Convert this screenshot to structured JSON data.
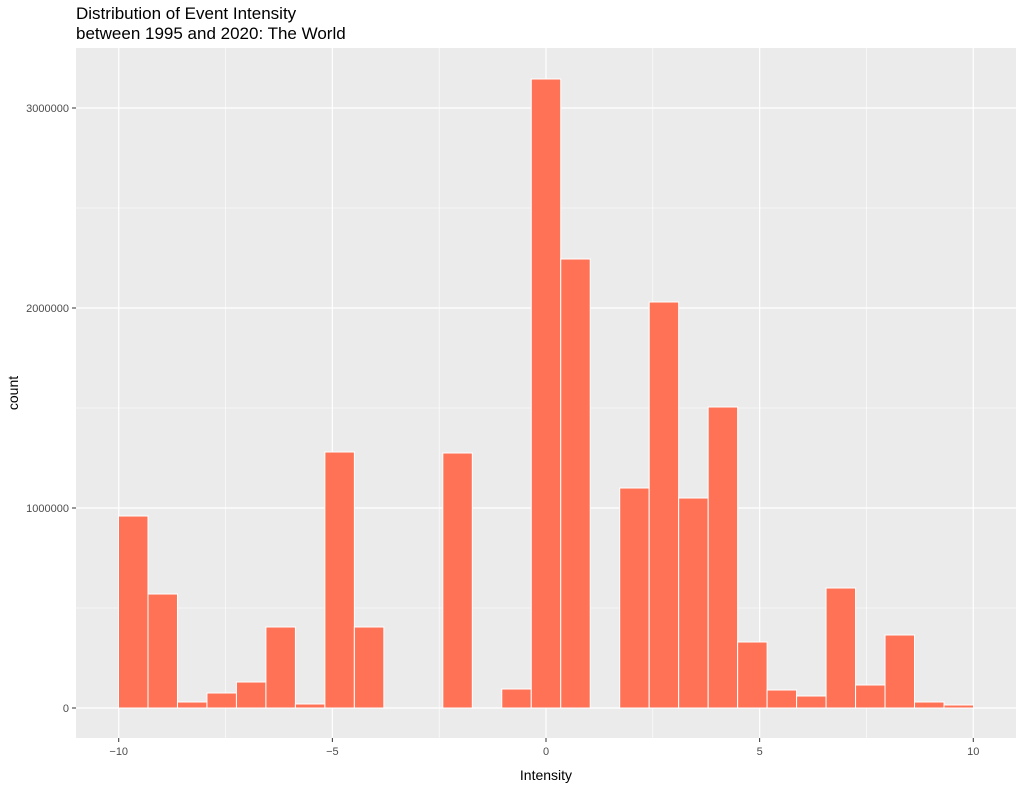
{
  "chart_data": {
    "type": "bar",
    "title_line1": "Distribution of Event Intensity",
    "title_line2": "between 1995 and 2020: The World",
    "xlabel": "Intensity",
    "ylabel": "count",
    "xlim": [
      -11,
      11
    ],
    "ylim": [
      -150000,
      3300000
    ],
    "x_ticks": [
      -10,
      -5,
      0,
      5,
      10
    ],
    "x_tick_labels": [
      "−10",
      "−5",
      "0",
      "5",
      "10"
    ],
    "y_ticks": [
      0,
      1000000,
      2000000,
      3000000
    ],
    "y_tick_labels": [
      "0",
      "1000000",
      "2000000",
      "3000000"
    ],
    "bin_width": 0.69,
    "bins": [
      {
        "x": -9.66,
        "count": 960000
      },
      {
        "x": -8.97,
        "count": 570000
      },
      {
        "x": -8.28,
        "count": 30000
      },
      {
        "x": -7.59,
        "count": 75000
      },
      {
        "x": -6.9,
        "count": 130000
      },
      {
        "x": -6.21,
        "count": 405000
      },
      {
        "x": -5.52,
        "count": 20000
      },
      {
        "x": -4.83,
        "count": 1280000
      },
      {
        "x": -4.14,
        "count": 405000
      },
      {
        "x": -3.45,
        "count": 0
      },
      {
        "x": -2.76,
        "count": 0
      },
      {
        "x": -2.07,
        "count": 1275000
      },
      {
        "x": -1.38,
        "count": 0
      },
      {
        "x": -0.69,
        "count": 95000
      },
      {
        "x": 0.0,
        "count": 3145000
      },
      {
        "x": 0.69,
        "count": 2245000
      },
      {
        "x": 1.38,
        "count": 0
      },
      {
        "x": 2.07,
        "count": 1100000
      },
      {
        "x": 2.76,
        "count": 2030000
      },
      {
        "x": 3.45,
        "count": 1050000
      },
      {
        "x": 4.14,
        "count": 1505000
      },
      {
        "x": 4.83,
        "count": 330000
      },
      {
        "x": 5.52,
        "count": 90000
      },
      {
        "x": 6.21,
        "count": 60000
      },
      {
        "x": 6.9,
        "count": 600000
      },
      {
        "x": 7.59,
        "count": 115000
      },
      {
        "x": 8.28,
        "count": 365000
      },
      {
        "x": 8.97,
        "count": 30000
      },
      {
        "x": 9.66,
        "count": 15000
      }
    ],
    "colors": {
      "panel": "#ebebeb",
      "grid_major": "#ffffff",
      "bar_fill": "#ff7256",
      "bar_stroke": "#ffffff",
      "tick": "#333333"
    }
  }
}
